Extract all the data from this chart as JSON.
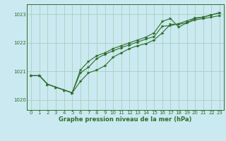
{
  "title": "Graphe pression niveau de la mer (hPa)",
  "background_color": "#cbe9f0",
  "grid_color": "#a8cfc0",
  "line_color": "#2d6e2d",
  "marker_color": "#2d6e2d",
  "ylim": [
    1019.65,
    1023.35
  ],
  "yticks": [
    1020,
    1021,
    1022,
    1023
  ],
  "xlim": [
    -0.5,
    23.5
  ],
  "xticks": [
    0,
    1,
    2,
    3,
    4,
    5,
    6,
    7,
    8,
    9,
    10,
    11,
    12,
    13,
    14,
    15,
    16,
    17,
    18,
    19,
    20,
    21,
    22,
    23
  ],
  "series": [
    {
      "x": [
        0,
        1,
        2,
        3,
        4,
        5,
        6,
        7,
        8,
        9,
        10,
        11,
        12,
        13,
        14,
        15,
        16,
        17,
        18,
        19,
        20,
        21,
        22,
        23
      ],
      "y": [
        1020.85,
        1020.85,
        1020.55,
        1020.45,
        1020.35,
        1020.25,
        1020.65,
        1020.95,
        1021.05,
        1021.2,
        1021.5,
        1021.65,
        1021.8,
        1021.9,
        1021.97,
        1022.1,
        1022.35,
        1022.65,
        1022.65,
        1022.7,
        1022.8,
        1022.85,
        1022.9,
        1022.95
      ]
    },
    {
      "x": [
        0,
        1,
        2,
        3,
        4,
        5,
        6,
        7,
        8,
        9,
        10,
        11,
        12,
        13,
        14,
        15,
        16,
        17,
        18,
        19,
        20,
        21,
        22,
        23
      ],
      "y": [
        1020.85,
        1020.85,
        1020.55,
        1020.45,
        1020.35,
        1020.25,
        1021.05,
        1021.35,
        1021.55,
        1021.65,
        1021.8,
        1021.9,
        1022.0,
        1022.1,
        1022.2,
        1022.35,
        1022.75,
        1022.85,
        1022.55,
        1022.7,
        1022.85,
        1022.9,
        1022.98,
        1023.05
      ]
    },
    {
      "x": [
        0,
        1,
        2,
        3,
        4,
        5,
        6,
        7,
        8,
        9,
        10,
        11,
        12,
        13,
        14,
        15,
        16,
        17,
        18,
        19,
        20,
        21,
        22,
        23
      ],
      "y": [
        1020.85,
        1020.85,
        1020.55,
        1020.45,
        1020.35,
        1020.25,
        1020.95,
        1021.15,
        1021.45,
        1021.6,
        1021.72,
        1021.83,
        1021.93,
        1022.03,
        1022.13,
        1022.22,
        1022.58,
        1022.6,
        1022.67,
        1022.77,
        1022.87,
        1022.9,
        1022.98,
        1023.05
      ]
    }
  ]
}
